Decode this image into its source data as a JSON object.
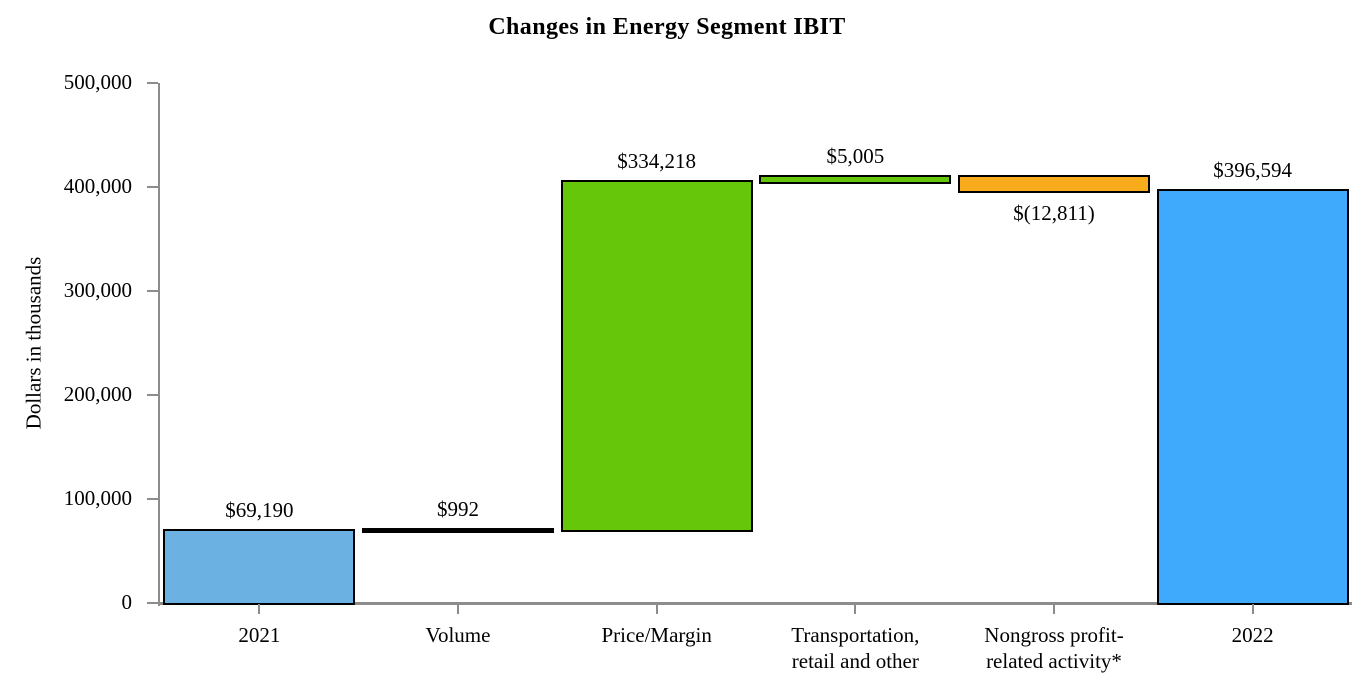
{
  "chart_data": {
    "type": "bar",
    "subtype": "waterfall",
    "title": "Changes in Energy Segment IBIT",
    "xlabel": "",
    "ylabel": "Dollars in thousands",
    "ylim": [
      0,
      500000
    ],
    "grid": false,
    "legend": false,
    "yticks": [
      {
        "value": 0,
        "label": "0"
      },
      {
        "value": 100000,
        "label": "100,000"
      },
      {
        "value": 200000,
        "label": "200,000"
      },
      {
        "value": 300000,
        "label": "300,000"
      },
      {
        "value": 400000,
        "label": "400,000"
      },
      {
        "value": 500000,
        "label": "500,000"
      }
    ],
    "bars": [
      {
        "category_lines": [
          "2021"
        ],
        "value": 69190,
        "value_label": "$69,190",
        "start": 0,
        "end": 69190,
        "fill": "#6BB2E3",
        "value_label_position": "above"
      },
      {
        "category_lines": [
          "Volume"
        ],
        "value": 992,
        "value_label": "$992",
        "start": 69190,
        "end": 70182,
        "fill": "#000000",
        "value_label_position": "above"
      },
      {
        "category_lines": [
          "Price/Margin"
        ],
        "value": 334218,
        "value_label": "$334,218",
        "start": 70182,
        "end": 404400,
        "fill": "#66C60A",
        "value_label_position": "above"
      },
      {
        "category_lines": [
          "Transportation,",
          "retail and other"
        ],
        "value": 5005,
        "value_label": "$5,005",
        "start": 404400,
        "end": 409405,
        "fill": "#66C60A",
        "value_label_position": "above"
      },
      {
        "category_lines": [
          "Nongross profit-",
          "related activity*"
        ],
        "value": -12811,
        "value_label": "$(12,811)",
        "start": 409405,
        "end": 396594,
        "fill": "#F9AC1B",
        "value_label_position": "below"
      },
      {
        "category_lines": [
          "2022"
        ],
        "value": 396594,
        "value_label": "$396,594",
        "start": 0,
        "end": 396594,
        "fill": "#3FAAFB",
        "value_label_position": "above"
      }
    ],
    "colors": {
      "axis": "#8C8C8C",
      "bar_border": "#000000",
      "text": "#000000",
      "background": "#FFFFFF"
    }
  }
}
